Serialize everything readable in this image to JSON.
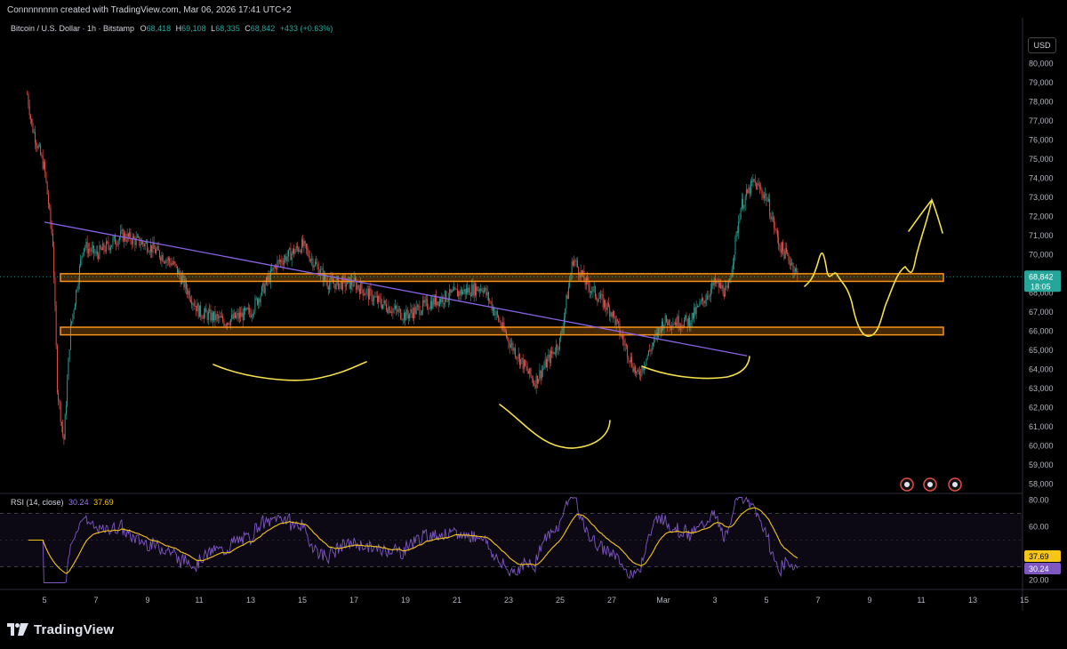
{
  "header": {
    "text": "Connnnnnnn created with TradingView.com, Mar 06, 2026 17:41 UTC+2"
  },
  "legend": {
    "symbol": "Bitcoin / U.S. Dollar · 1h · Bitstamp",
    "o_label": "O",
    "o_value": "68,418",
    "h_label": "H",
    "h_value": "69,108",
    "l_label": "L",
    "l_value": "68,335",
    "c_label": "C",
    "c_value": "68,842",
    "change": "+433 (+0.63%)"
  },
  "rsi_legend": {
    "label": "RSI (14, close)",
    "rsi_value": "30.24",
    "ma_value": "37.69"
  },
  "currency_button": "USD",
  "footer": {
    "brand": "TradingView"
  },
  "colors": {
    "bull": "#26a69a",
    "bear": "#ef5350",
    "zone": "#f7931a",
    "trend": "#8a63e6",
    "drawing": "#f5e04a",
    "rsi": "#7e57c2",
    "rsi_ma": "#f5c518"
  },
  "chart_data": [
    {
      "type": "candlestick",
      "title": "Bitcoin / U.S. Dollar · 1h · Bitstamp",
      "ylabel": "USD",
      "ylim": [
        57500,
        81000
      ],
      "y_ticks": [
        "80,000",
        "79,000",
        "78,000",
        "77,000",
        "76,000",
        "75,000",
        "74,000",
        "73,000",
        "72,000",
        "71,000",
        "70,000",
        "69,000",
        "68,000",
        "67,000",
        "66,000",
        "65,000",
        "64,000",
        "63,000",
        "62,000",
        "61,000",
        "60,000",
        "59,000",
        "58,000"
      ],
      "x_ticks": [
        "5",
        "7",
        "9",
        "11",
        "13",
        "15",
        "17",
        "19",
        "21",
        "23",
        "25",
        "27",
        "Mar",
        "3",
        "5",
        "7",
        "9",
        "11",
        "13",
        "15"
      ],
      "approx_path": [
        {
          "x": "Feb 4 20:00",
          "close": 78400
        },
        {
          "x": "Feb 5 00:00",
          "close": 76800
        },
        {
          "x": "Feb 5 12:00",
          "close": 74500
        },
        {
          "x": "Feb 5 20:00",
          "close": 70500
        },
        {
          "x": "Feb 6 00:00",
          "close": 63000
        },
        {
          "x": "Feb 6 06:00",
          "close": 60200
        },
        {
          "x": "Feb 6 12:00",
          "close": 66000
        },
        {
          "x": "Feb 7 00:00",
          "close": 70500
        },
        {
          "x": "Feb 7 12:00",
          "close": 70000
        },
        {
          "x": "Feb 8 12:00",
          "close": 71000
        },
        {
          "x": "Feb 9 12:00",
          "close": 70500
        },
        {
          "x": "Feb 10 12:00",
          "close": 69500
        },
        {
          "x": "Feb 11 12:00",
          "close": 67000
        },
        {
          "x": "Feb 12 12:00",
          "close": 66500
        },
        {
          "x": "Feb 13 12:00",
          "close": 67000
        },
        {
          "x": "Feb 14 12:00",
          "close": 69500
        },
        {
          "x": "Feb 15 12:00",
          "close": 70500
        },
        {
          "x": "Feb 16 12:00",
          "close": 68500
        },
        {
          "x": "Feb 17 12:00",
          "close": 68500
        },
        {
          "x": "Feb 18 12:00",
          "close": 67500
        },
        {
          "x": "Feb 19 12:00",
          "close": 66800
        },
        {
          "x": "Feb 20 12:00",
          "close": 67500
        },
        {
          "x": "Feb 21 12:00",
          "close": 68000
        },
        {
          "x": "Feb 22 12:00",
          "close": 68300
        },
        {
          "x": "Feb 23 12:00",
          "close": 65500
        },
        {
          "x": "Feb 24 12:00",
          "close": 63300
        },
        {
          "x": "Feb 25 12:00",
          "close": 65500
        },
        {
          "x": "Feb 26 00:00",
          "close": 69800
        },
        {
          "x": "Feb 26 12:00",
          "close": 68500
        },
        {
          "x": "Feb 27 12:00",
          "close": 67000
        },
        {
          "x": "Feb 28 12:00",
          "close": 63600
        },
        {
          "x": "Mar 1 12:00",
          "close": 66500
        },
        {
          "x": "Mar 2 12:00",
          "close": 66500
        },
        {
          "x": "Mar 3 12:00",
          "close": 68500
        },
        {
          "x": "Mar 4 00:00",
          "close": 68000
        },
        {
          "x": "Mar 4 12:00",
          "close": 72500
        },
        {
          "x": "Mar 5 00:00",
          "close": 73800
        },
        {
          "x": "Mar 5 12:00",
          "close": 73000
        },
        {
          "x": "Mar 6 00:00",
          "close": 70500
        },
        {
          "x": "Mar 6 12:00",
          "close": 69500
        },
        {
          "x": "Mar 6 17:00",
          "close": 68842
        }
      ],
      "zones": [
        {
          "name": "resistance",
          "from": 68600,
          "to": 69000
        },
        {
          "name": "support",
          "from": 65800,
          "to": 66200
        }
      ],
      "trendline": [
        {
          "x": "Feb 5 12:00",
          "y": 71700
        },
        {
          "x": "Mar 4 18:00",
          "y": 64700
        }
      ],
      "current_price": "68,842",
      "countdown": "18:05"
    },
    {
      "type": "line",
      "title": "RSI (14, close)",
      "ylim": [
        15,
        85
      ],
      "y_ticks": [
        "80.00",
        "60.00",
        "20.00"
      ],
      "series": [
        {
          "name": "RSI",
          "last": 30.24
        },
        {
          "name": "RSI-based MA",
          "last": 37.69
        }
      ],
      "bands": [
        70,
        30
      ]
    }
  ]
}
